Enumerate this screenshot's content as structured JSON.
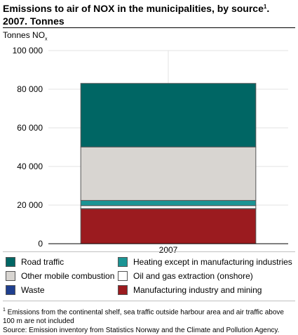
{
  "header": {
    "title_main": "Emissions to air of NOX in the municipalities, by source",
    "title_footnote_marker": "1",
    "title_suffix": ". 2007. Tonnes"
  },
  "chart_data": {
    "type": "bar",
    "stacked": true,
    "categories": [
      "2007"
    ],
    "ylabel": "Tonnes NO",
    "ylabel_subscript": "x",
    "ylim": [
      0,
      100000
    ],
    "yticks": [
      0,
      20000,
      40000,
      60000,
      80000,
      100000
    ],
    "ytick_labels": [
      "0",
      "20 000",
      "40 000",
      "60 000",
      "80 000",
      "100 000"
    ],
    "grid": true,
    "legend_position": "bottom",
    "series": [
      {
        "name": "Manufacturing industry and mining",
        "color": "#9b1b1f",
        "values": [
          18000
        ]
      },
      {
        "name": "Waste",
        "color": "#1f3f8f",
        "values": [
          200
        ]
      },
      {
        "name": "Oil and gas extraction (onshore)",
        "color": "#ffffff",
        "values": [
          1500
        ]
      },
      {
        "name": "Heating except in manufacturing industries",
        "color": "#1b9494",
        "values": [
          2700
        ]
      },
      {
        "name": "Other mobile combustion",
        "color": "#d8d5d1",
        "values": [
          27700
        ]
      },
      {
        "name": "Road traffic",
        "color": "#006664",
        "values": [
          32900
        ]
      }
    ]
  },
  "legend_order": [
    "Road traffic",
    "Heating except in manufacturing industries",
    "Other mobile combustion",
    "Oil and gas extraction (onshore)",
    "Waste",
    "Manufacturing industry and mining"
  ],
  "footnote": {
    "marker": "1",
    "text": " Emissions from the continental shelf, sea traffic outside harbour area and air traffic above 100 m are not included",
    "source": "Source: Emission inventory from Statistics Norway and the Climate and Pollution Agency."
  }
}
